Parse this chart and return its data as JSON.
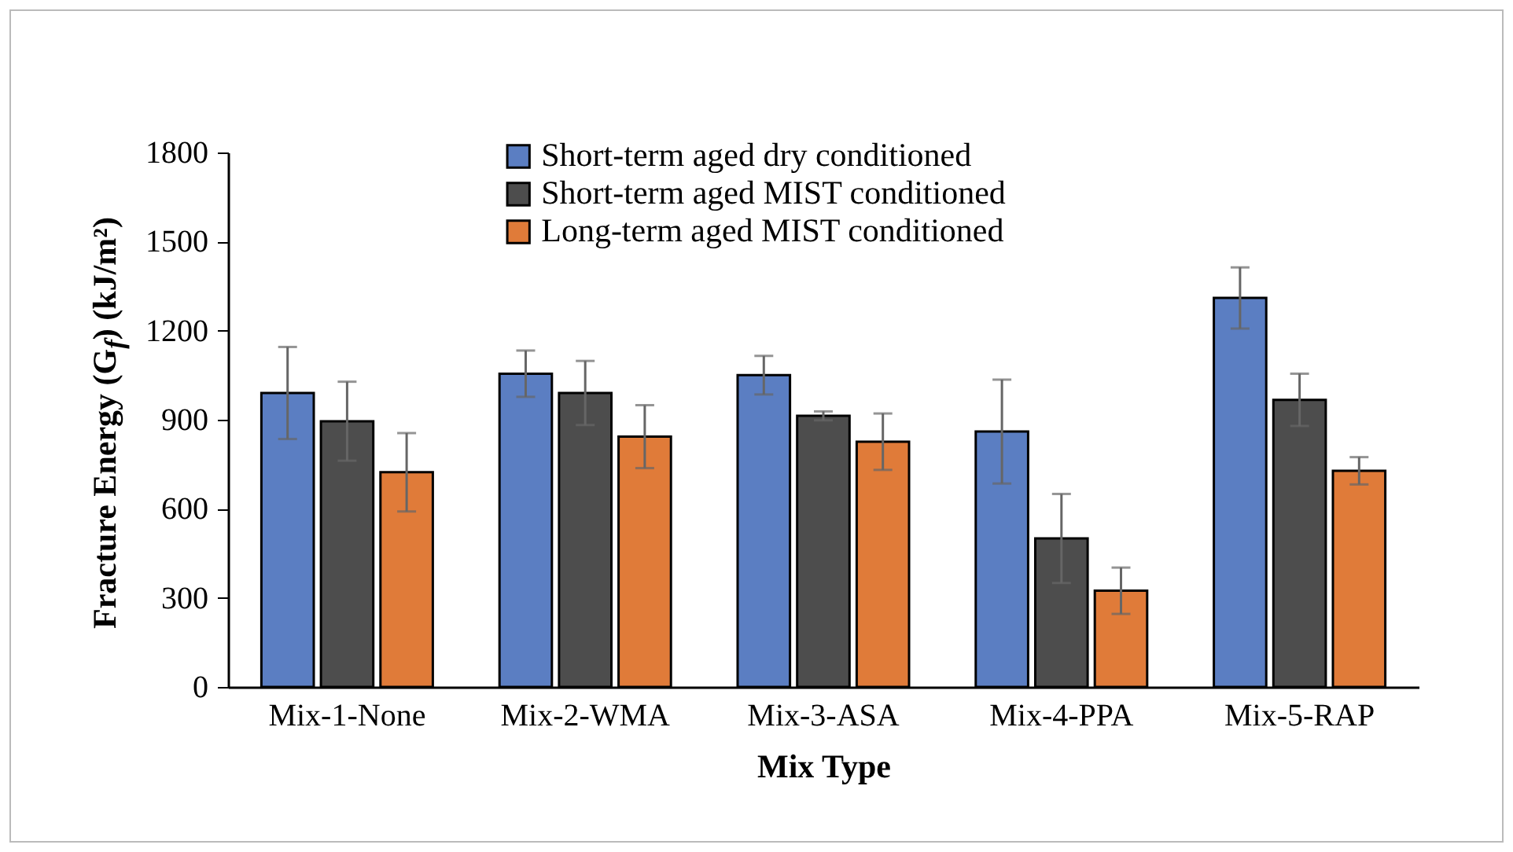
{
  "chart_data": {
    "type": "bar",
    "xlabel": "Mix Type",
    "ylabel": "Fracture Energy (G$_{f}$) (kJ/m²)",
    "categories": [
      "Mix-1-None",
      "Mix-2-WMA",
      "Mix-3-ASA",
      "Mix-4-PPA",
      "Mix-5-RAP"
    ],
    "series": [
      {
        "name": "Short-term aged dry conditioned",
        "color": "#5b7ec2",
        "values": [
          990,
          1055,
          1050,
          860,
          1310
        ],
        "errors": [
          155,
          78,
          65,
          175,
          103
        ]
      },
      {
        "name": "Short-term aged MIST conditioned",
        "color": "#4d4d4d",
        "values": [
          895,
          990,
          913,
          500,
          967
        ],
        "errors": [
          133,
          108,
          15,
          150,
          88
        ]
      },
      {
        "name": "Long-term aged MIST conditioned",
        "color": "#e07b39",
        "values": [
          723,
          843,
          826,
          324,
          728
        ],
        "errors": [
          132,
          106,
          95,
          78,
          46
        ]
      }
    ],
    "ylim": [
      0,
      1800
    ],
    "yticks": [
      0,
      300,
      600,
      900,
      1200,
      1500,
      1800
    ],
    "grid": false,
    "legend": "top"
  }
}
